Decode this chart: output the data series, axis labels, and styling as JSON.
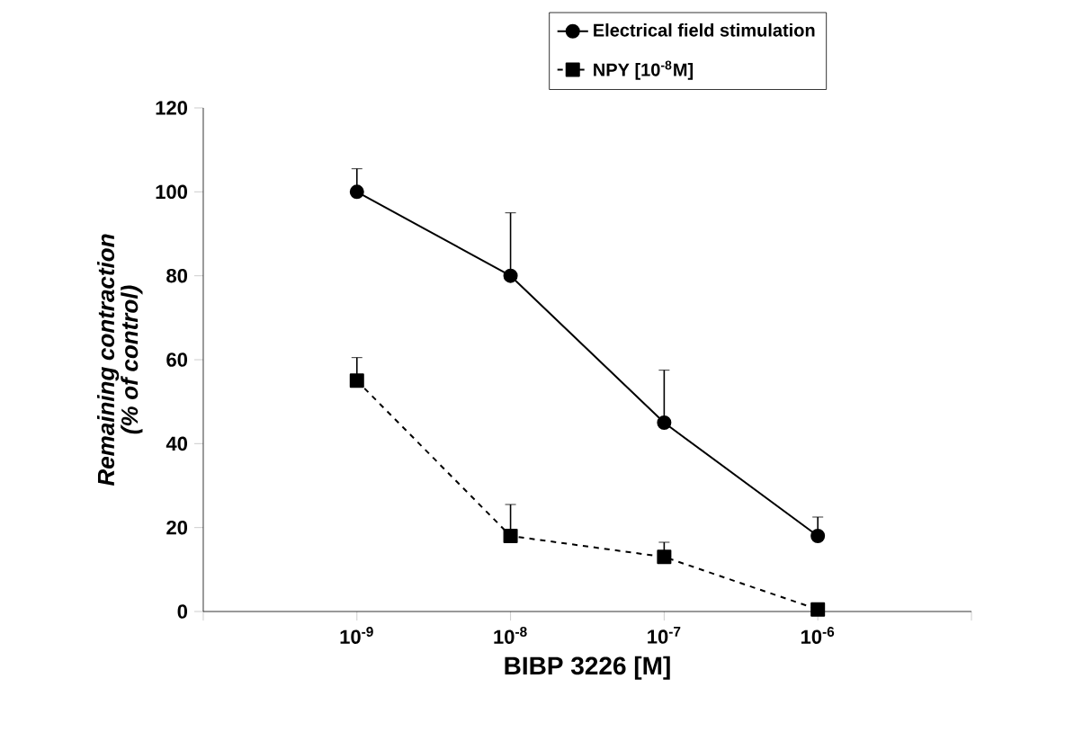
{
  "chart_data": {
    "type": "line",
    "xlabel": "BIBP 3226 [M]",
    "ylabel": "Remaining contraction (% of control)",
    "log": "x",
    "x": [
      1e-09,
      1e-08,
      1e-07,
      1e-06
    ],
    "xlim": [
      1e-10,
      1e-05
    ],
    "xticks": [
      {
        "value": 1e-10,
        "label": null
      },
      {
        "value": 1e-09,
        "label": "10$^{-9}$"
      },
      {
        "value": 1e-08,
        "label": "10$^{-8}$"
      },
      {
        "value": 1e-07,
        "label": "10$^{-7}$"
      },
      {
        "value": 1e-06,
        "label": "10$^{-6}$"
      },
      {
        "value": 1e-05,
        "label": null
      }
    ],
    "ylim": [
      0,
      120
    ],
    "yticks": [
      0,
      20,
      40,
      60,
      80,
      100,
      120
    ],
    "legend": "top right",
    "series": [
      {
        "name": "Electrical field stimulation",
        "color": "#000000",
        "marker": "circle",
        "line_style": "solid",
        "values": [
          100,
          80,
          45,
          18
        ],
        "errors": [
          [
            100,
            105.5
          ],
          [
            80,
            95
          ],
          [
            45,
            57.5
          ],
          [
            18,
            22.5
          ]
        ]
      },
      {
        "name": "NPY [10$^{-8}$M]",
        "color": "#000000",
        "marker": "square",
        "line_style": "dashed",
        "values": [
          55,
          18,
          13,
          0.5
        ],
        "errors": [
          [
            55,
            60.5
          ],
          [
            18,
            25.5
          ],
          [
            13,
            16.5
          ],
          null
        ]
      }
    ]
  }
}
